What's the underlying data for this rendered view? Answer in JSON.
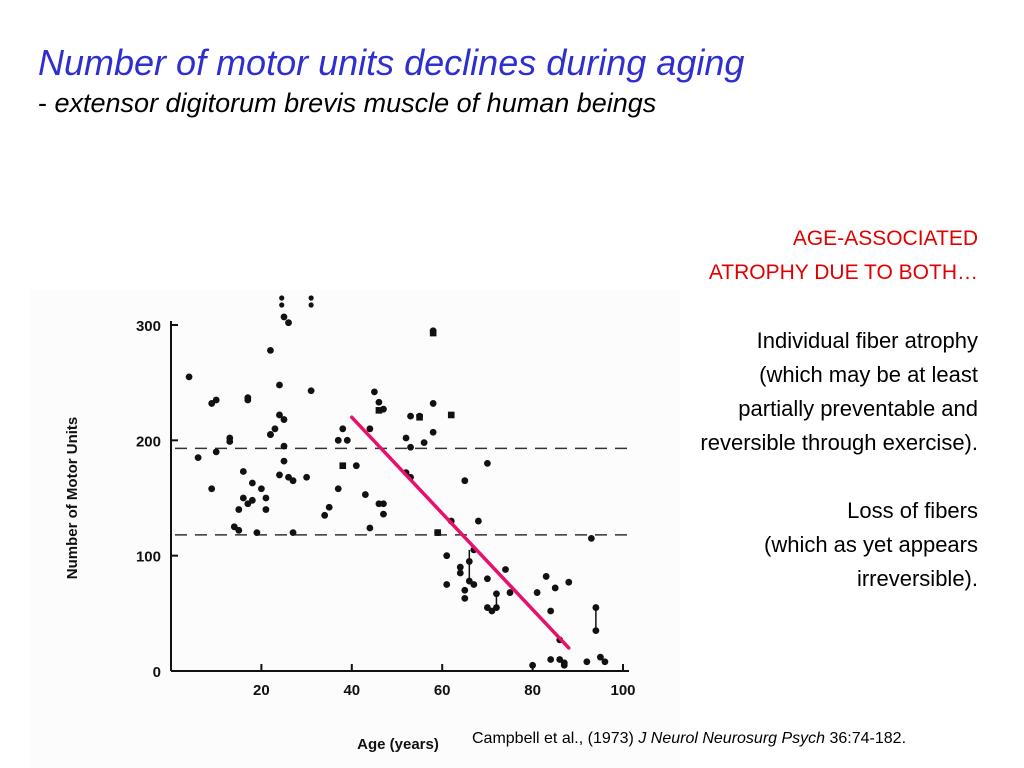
{
  "slide": {
    "title": "Number of motor units declines during aging",
    "subtitle_dash": "- ",
    "subtitle": "extensor digitorum brevis muscle of human beings"
  },
  "side_notes": {
    "heading_lines": [
      "AGE-ASSOCIATED",
      "ATROPHY DUE TO BOTH…"
    ],
    "point1_lines": [
      "Individual fiber atrophy",
      "(which may be at least",
      "partially preventable and",
      "reversible through exercise)."
    ],
    "point2_lines": [
      "Loss of fibers",
      "(which as yet appears",
      "irreversible)."
    ],
    "heading_color": "#e10000"
  },
  "citation": {
    "authors": "Campbell et al., (1973) ",
    "journal": "J Neurol Neurosurg Psych",
    "ref": " 36:74-182."
  },
  "colors": {
    "title": "#2f2fd0",
    "trend_line": "#e8106c"
  },
  "chart_data": {
    "type": "scatter",
    "xlabel": "Age (years)",
    "ylabel": "Number of Motor Units",
    "xlim": [
      0,
      100
    ],
    "ylim": [
      0,
      300
    ],
    "xticks": [
      20,
      40,
      60,
      80,
      100
    ],
    "yticks": [
      0,
      100,
      200,
      300
    ],
    "x_tick_labels": [
      "20",
      "40",
      "60",
      "80",
      "100"
    ],
    "y_tick_labels": [
      "0",
      "100",
      "200",
      "300"
    ],
    "grid": false,
    "reference_lines_y": [
      193,
      118
    ],
    "trend_line": {
      "x": [
        40,
        88
      ],
      "y": [
        220,
        20
      ]
    },
    "points": [
      {
        "x": 4,
        "y": 255
      },
      {
        "x": 6,
        "y": 185
      },
      {
        "x": 9,
        "y": 232
      },
      {
        "x": 9,
        "y": 158
      },
      {
        "x": 10,
        "y": 235
      },
      {
        "x": 10,
        "y": 190
      },
      {
        "x": 13,
        "y": 202
      },
      {
        "x": 13,
        "y": 199
      },
      {
        "x": 14,
        "y": 125
      },
      {
        "x": 15,
        "y": 122
      },
      {
        "x": 15,
        "y": 140
      },
      {
        "x": 16,
        "y": 173
      },
      {
        "x": 16,
        "y": 150
      },
      {
        "x": 17,
        "y": 237
      },
      {
        "x": 17,
        "y": 235
      },
      {
        "x": 17,
        "y": 145
      },
      {
        "x": 18,
        "y": 163
      },
      {
        "x": 18,
        "y": 148
      },
      {
        "x": 19,
        "y": 120
      },
      {
        "x": 20,
        "y": 158
      },
      {
        "x": 21,
        "y": 150
      },
      {
        "x": 21,
        "y": 140
      },
      {
        "x": 22,
        "y": 205
      },
      {
        "x": 22,
        "y": 205
      },
      {
        "x": 22,
        "y": 278
      },
      {
        "x": 23,
        "y": 210
      },
      {
        "x": 24,
        "y": 248
      },
      {
        "x": 24,
        "y": 222
      },
      {
        "x": 24,
        "y": 170
      },
      {
        "x": 25,
        "y": 307
      },
      {
        "x": 25,
        "y": 218
      },
      {
        "x": 25,
        "y": 195
      },
      {
        "x": 25,
        "y": 182
      },
      {
        "x": 26,
        "y": 302
      },
      {
        "x": 26,
        "y": 168
      },
      {
        "x": 27,
        "y": 165
      },
      {
        "x": 27,
        "y": 120
      },
      {
        "x": 30,
        "y": 168
      },
      {
        "x": 31,
        "y": 243
      },
      {
        "x": 34,
        "y": 135
      },
      {
        "x": 35,
        "y": 142
      },
      {
        "x": 37,
        "y": 158
      },
      {
        "x": 37,
        "y": 200
      },
      {
        "x": 38,
        "y": 210
      },
      {
        "x": 39,
        "y": 200
      },
      {
        "x": 41,
        "y": 178
      },
      {
        "x": 43,
        "y": 153
      },
      {
        "x": 44,
        "y": 210
      },
      {
        "x": 44,
        "y": 124
      },
      {
        "x": 45,
        "y": 242
      },
      {
        "x": 46,
        "y": 145
      },
      {
        "x": 46,
        "y": 233
      },
      {
        "x": 47,
        "y": 145
      },
      {
        "x": 47,
        "y": 227
      },
      {
        "x": 47,
        "y": 136
      },
      {
        "x": 52,
        "y": 202
      },
      {
        "x": 52,
        "y": 172
      },
      {
        "x": 53,
        "y": 221
      },
      {
        "x": 53,
        "y": 168
      },
      {
        "x": 53,
        "y": 194
      },
      {
        "x": 55,
        "y": 221
      },
      {
        "x": 56,
        "y": 198
      },
      {
        "x": 58,
        "y": 295
      },
      {
        "x": 58,
        "y": 232
      },
      {
        "x": 58,
        "y": 207
      },
      {
        "x": 59,
        "y": 120
      },
      {
        "x": 61,
        "y": 100
      },
      {
        "x": 61,
        "y": 75
      },
      {
        "x": 62,
        "y": 130
      },
      {
        "x": 64,
        "y": 90
      },
      {
        "x": 64,
        "y": 85
      },
      {
        "x": 65,
        "y": 165
      },
      {
        "x": 65,
        "y": 70
      },
      {
        "x": 65,
        "y": 63
      },
      {
        "x": 66,
        "y": 95
      },
      {
        "x": 66,
        "y": 78
      },
      {
        "x": 67,
        "y": 105
      },
      {
        "x": 67,
        "y": 75
      },
      {
        "x": 68,
        "y": 130
      },
      {
        "x": 70,
        "y": 180
      },
      {
        "x": 70,
        "y": 80
      },
      {
        "x": 70,
        "y": 55
      },
      {
        "x": 71,
        "y": 52
      },
      {
        "x": 72,
        "y": 67
      },
      {
        "x": 72,
        "y": 55
      },
      {
        "x": 74,
        "y": 88
      },
      {
        "x": 75,
        "y": 68
      },
      {
        "x": 80,
        "y": 5
      },
      {
        "x": 81,
        "y": 68
      },
      {
        "x": 83,
        "y": 82
      },
      {
        "x": 84,
        "y": 10
      },
      {
        "x": 84,
        "y": 52
      },
      {
        "x": 85,
        "y": 72
      },
      {
        "x": 86,
        "y": 27
      },
      {
        "x": 86,
        "y": 10
      },
      {
        "x": 87,
        "y": 7
      },
      {
        "x": 87,
        "y": 5
      },
      {
        "x": 87,
        "y": 7
      },
      {
        "x": 88,
        "y": 77
      },
      {
        "x": 92,
        "y": 8
      },
      {
        "x": 93,
        "y": 115
      },
      {
        "x": 94,
        "y": 55
      },
      {
        "x": 94,
        "y": 35
      },
      {
        "x": 95,
        "y": 12
      },
      {
        "x": 96,
        "y": 8
      }
    ],
    "square_points": [
      {
        "x": 38,
        "y": 178
      },
      {
        "x": 46,
        "y": 226
      },
      {
        "x": 55,
        "y": 220
      },
      {
        "x": 58,
        "y": 293
      },
      {
        "x": 59,
        "y": 120
      },
      {
        "x": 62,
        "y": 222
      }
    ],
    "vertical_ranges": [
      {
        "x": 66,
        "y": [
          75,
          105
        ]
      },
      {
        "x": 72,
        "y": [
          55,
          67
        ]
      },
      {
        "x": 94,
        "y": [
          35,
          55
        ]
      }
    ]
  }
}
